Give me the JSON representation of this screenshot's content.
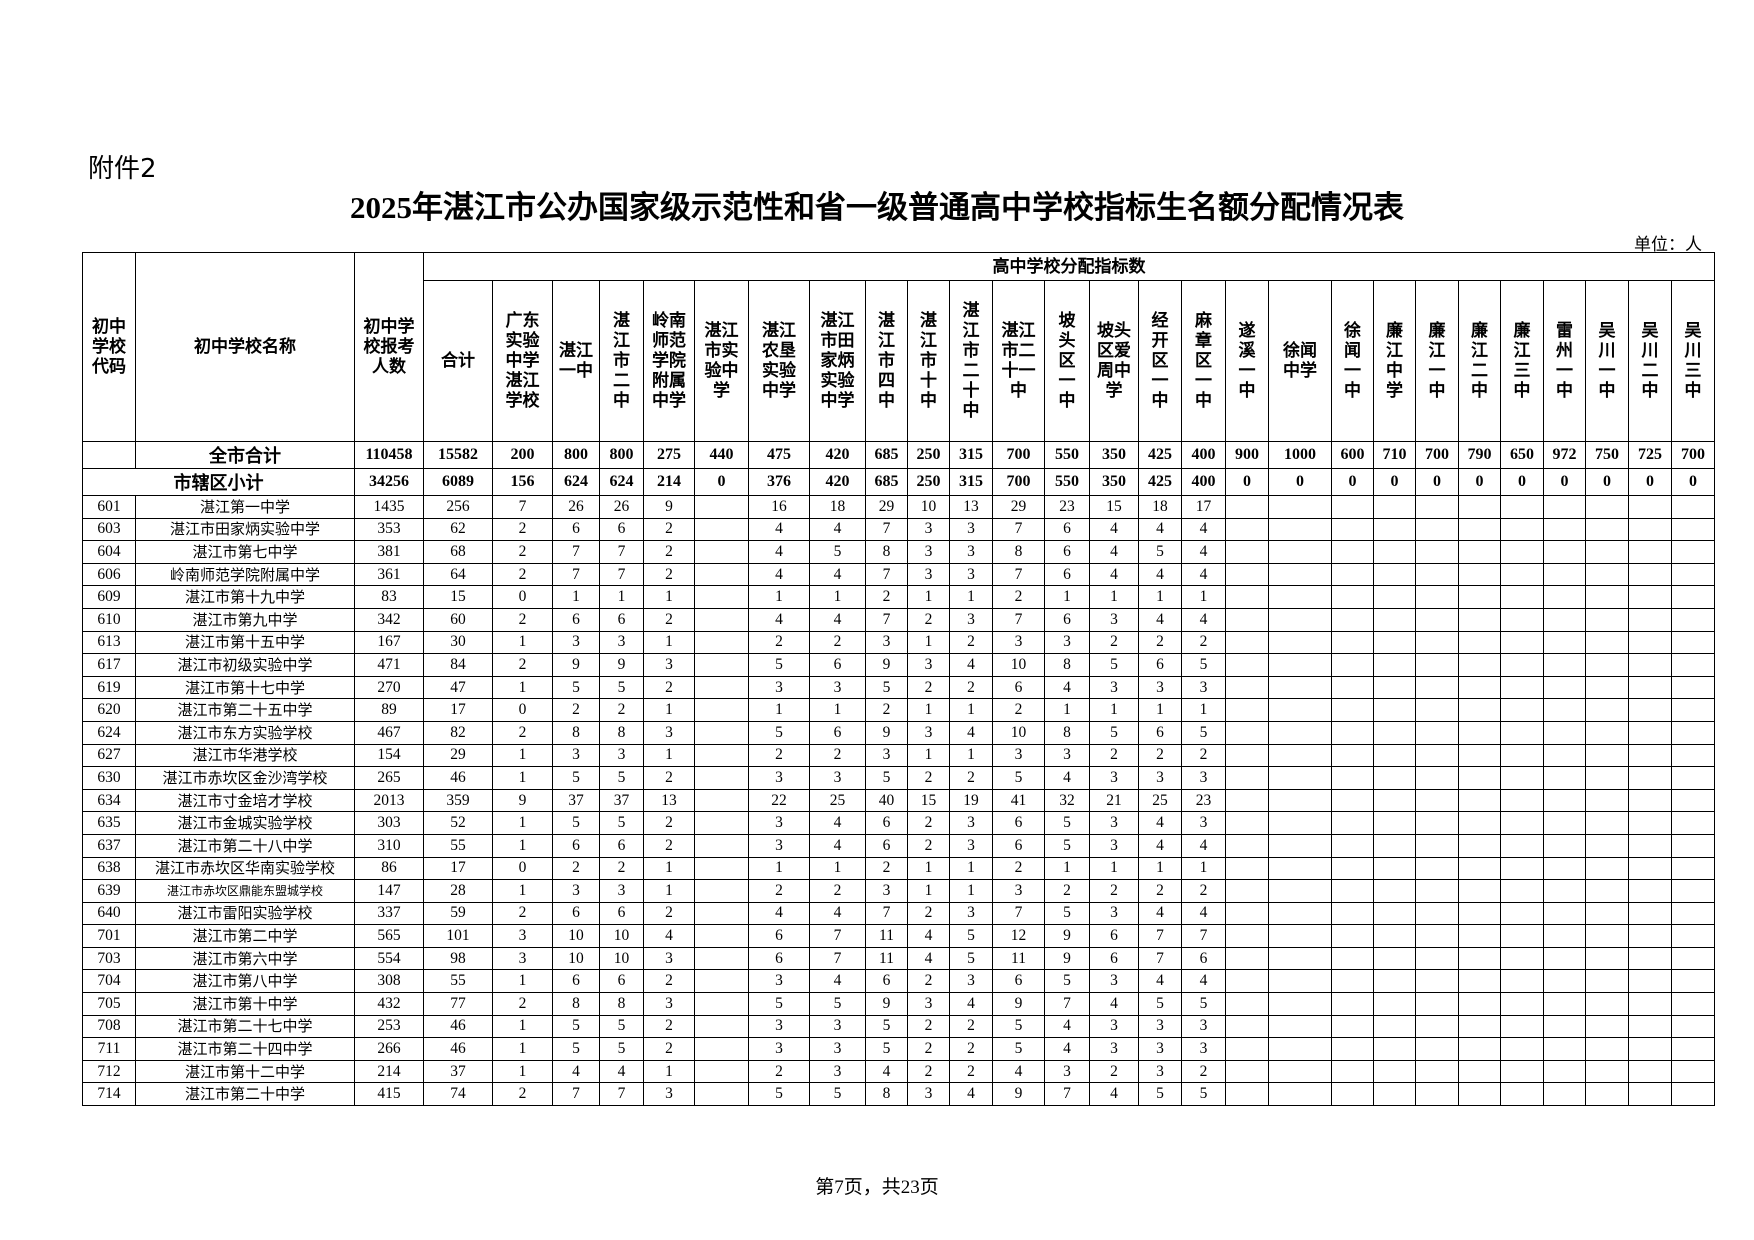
{
  "document": {
    "attachment": "附件2",
    "title": "2025年湛江市公办国家级示范性和省一级普通高中学校指标生名额分配情况表",
    "unit": "单位：人",
    "footer": "第7页，共23页"
  },
  "table": {
    "header": {
      "code": "初中\n学校\n代码",
      "name": "初中学校名称",
      "count": "初中学\n校报考\n人数",
      "group": "高中学校分配指标数",
      "schools": [
        "合计",
        "广东\n实验\n中学\n湛江\n学校",
        "湛江\n一中",
        "湛\n江\n市\n二\n中",
        "岭南\n师范\n学院\n附属\n中学",
        "湛江\n市实\n验中\n学",
        "湛江\n农垦\n实验\n中学",
        "湛江\n市田\n家炳\n实验\n中学",
        "湛\n江\n市\n四\n中",
        "湛\n江\n市\n十\n中",
        "湛\n江\n市\n二\n十\n中",
        "湛江\n市二\n十一\n中",
        "坡\n头\n区\n一\n中",
        "坡头\n区爱\n周中\n学",
        "经\n开\n区\n一\n中",
        "麻\n章\n区\n一\n中",
        "遂\n溪\n一\n中",
        "徐闻\n中学",
        "徐\n闻\n一\n中",
        "廉\n江\n中\n学",
        "廉\n江\n一\n中",
        "廉\n江\n二\n中",
        "廉\n江\n三\n中",
        "雷\n州\n一\n中",
        "吴\n川\n一\n中",
        "吴\n川\n二\n中",
        "吴\n川\n三\n中"
      ]
    },
    "totals": [
      {
        "label": "全市合计",
        "values": [
          "110458",
          "15582",
          "200",
          "800",
          "800",
          "275",
          "440",
          "475",
          "420",
          "685",
          "250",
          "315",
          "700",
          "550",
          "350",
          "425",
          "400",
          "900",
          "1000",
          "600",
          "710",
          "700",
          "790",
          "650",
          "972",
          "750",
          "725",
          "700"
        ]
      },
      {
        "label": "市辖区小计",
        "values": [
          "34256",
          "6089",
          "156",
          "624",
          "624",
          "214",
          "0",
          "376",
          "420",
          "685",
          "250",
          "315",
          "700",
          "550",
          "350",
          "425",
          "400",
          "0",
          "0",
          "0",
          "0",
          "0",
          "0",
          "0",
          "0",
          "0",
          "0",
          "0"
        ]
      }
    ],
    "rows": [
      [
        "601",
        "湛江第一中学",
        "1435",
        "256",
        "7",
        "26",
        "26",
        "9",
        "",
        "16",
        "18",
        "29",
        "10",
        "13",
        "29",
        "23",
        "15",
        "18",
        "17"
      ],
      [
        "603",
        "湛江市田家炳实验中学",
        "353",
        "62",
        "2",
        "6",
        "6",
        "2",
        "",
        "4",
        "4",
        "7",
        "3",
        "3",
        "7",
        "6",
        "4",
        "4",
        "4"
      ],
      [
        "604",
        "湛江市第七中学",
        "381",
        "68",
        "2",
        "7",
        "7",
        "2",
        "",
        "4",
        "5",
        "8",
        "3",
        "3",
        "8",
        "6",
        "4",
        "5",
        "4"
      ],
      [
        "606",
        "岭南师范学院附属中学",
        "361",
        "64",
        "2",
        "7",
        "7",
        "2",
        "",
        "4",
        "4",
        "7",
        "3",
        "3",
        "7",
        "6",
        "4",
        "4",
        "4"
      ],
      [
        "609",
        "湛江市第十九中学",
        "83",
        "15",
        "0",
        "1",
        "1",
        "1",
        "",
        "1",
        "1",
        "2",
        "1",
        "1",
        "2",
        "1",
        "1",
        "1",
        "1"
      ],
      [
        "610",
        "湛江市第九中学",
        "342",
        "60",
        "2",
        "6",
        "6",
        "2",
        "",
        "4",
        "4",
        "7",
        "2",
        "3",
        "7",
        "6",
        "3",
        "4",
        "4"
      ],
      [
        "613",
        "湛江市第十五中学",
        "167",
        "30",
        "1",
        "3",
        "3",
        "1",
        "",
        "2",
        "2",
        "3",
        "1",
        "2",
        "3",
        "3",
        "2",
        "2",
        "2"
      ],
      [
        "617",
        "湛江市初级实验中学",
        "471",
        "84",
        "2",
        "9",
        "9",
        "3",
        "",
        "5",
        "6",
        "9",
        "3",
        "4",
        "10",
        "8",
        "5",
        "6",
        "5"
      ],
      [
        "619",
        "湛江市第十七中学",
        "270",
        "47",
        "1",
        "5",
        "5",
        "2",
        "",
        "3",
        "3",
        "5",
        "2",
        "2",
        "6",
        "4",
        "3",
        "3",
        "3"
      ],
      [
        "620",
        "湛江市第二十五中学",
        "89",
        "17",
        "0",
        "2",
        "2",
        "1",
        "",
        "1",
        "1",
        "2",
        "1",
        "1",
        "2",
        "1",
        "1",
        "1",
        "1"
      ],
      [
        "624",
        "湛江市东方实验学校",
        "467",
        "82",
        "2",
        "8",
        "8",
        "3",
        "",
        "5",
        "6",
        "9",
        "3",
        "4",
        "10",
        "8",
        "5",
        "6",
        "5"
      ],
      [
        "627",
        "湛江市华港学校",
        "154",
        "29",
        "1",
        "3",
        "3",
        "1",
        "",
        "2",
        "2",
        "3",
        "1",
        "1",
        "3",
        "3",
        "2",
        "2",
        "2"
      ],
      [
        "630",
        "湛江市赤坎区金沙湾学校",
        "265",
        "46",
        "1",
        "5",
        "5",
        "2",
        "",
        "3",
        "3",
        "5",
        "2",
        "2",
        "5",
        "4",
        "3",
        "3",
        "3"
      ],
      [
        "634",
        "湛江市寸金培才学校",
        "2013",
        "359",
        "9",
        "37",
        "37",
        "13",
        "",
        "22",
        "25",
        "40",
        "15",
        "19",
        "41",
        "32",
        "21",
        "25",
        "23"
      ],
      [
        "635",
        "湛江市金城实验学校",
        "303",
        "52",
        "1",
        "5",
        "5",
        "2",
        "",
        "3",
        "4",
        "6",
        "2",
        "3",
        "6",
        "5",
        "3",
        "4",
        "3"
      ],
      [
        "637",
        "湛江市第二十八中学",
        "310",
        "55",
        "1",
        "6",
        "6",
        "2",
        "",
        "3",
        "4",
        "6",
        "2",
        "3",
        "6",
        "5",
        "3",
        "4",
        "4"
      ],
      [
        "638",
        "湛江市赤坎区华南实验学校",
        "86",
        "17",
        "0",
        "2",
        "2",
        "1",
        "",
        "1",
        "1",
        "2",
        "1",
        "1",
        "2",
        "1",
        "1",
        "1",
        "1"
      ],
      [
        "639",
        "湛江市赤坎区鼎能东盟城学校",
        "147",
        "28",
        "1",
        "3",
        "3",
        "1",
        "",
        "2",
        "2",
        "3",
        "1",
        "1",
        "3",
        "2",
        "2",
        "2",
        "2"
      ],
      [
        "640",
        "湛江市雷阳实验学校",
        "337",
        "59",
        "2",
        "6",
        "6",
        "2",
        "",
        "4",
        "4",
        "7",
        "2",
        "3",
        "7",
        "5",
        "3",
        "4",
        "4"
      ],
      [
        "701",
        "湛江市第二中学",
        "565",
        "101",
        "3",
        "10",
        "10",
        "4",
        "",
        "6",
        "7",
        "11",
        "4",
        "5",
        "12",
        "9",
        "6",
        "7",
        "7"
      ],
      [
        "703",
        "湛江市第六中学",
        "554",
        "98",
        "3",
        "10",
        "10",
        "3",
        "",
        "6",
        "7",
        "11",
        "4",
        "5",
        "11",
        "9",
        "6",
        "7",
        "6"
      ],
      [
        "704",
        "湛江市第八中学",
        "308",
        "55",
        "1",
        "6",
        "6",
        "2",
        "",
        "3",
        "4",
        "6",
        "2",
        "3",
        "6",
        "5",
        "3",
        "4",
        "4"
      ],
      [
        "705",
        "湛江市第十中学",
        "432",
        "77",
        "2",
        "8",
        "8",
        "3",
        "",
        "5",
        "5",
        "9",
        "3",
        "4",
        "9",
        "7",
        "4",
        "5",
        "5"
      ],
      [
        "708",
        "湛江市第二十七中学",
        "253",
        "46",
        "1",
        "5",
        "5",
        "2",
        "",
        "3",
        "3",
        "5",
        "2",
        "2",
        "5",
        "4",
        "3",
        "3",
        "3"
      ],
      [
        "711",
        "湛江市第二十四中学",
        "266",
        "46",
        "1",
        "5",
        "5",
        "2",
        "",
        "3",
        "3",
        "5",
        "2",
        "2",
        "5",
        "4",
        "3",
        "3",
        "3"
      ],
      [
        "712",
        "湛江市第十二中学",
        "214",
        "37",
        "1",
        "4",
        "4",
        "1",
        "",
        "2",
        "3",
        "4",
        "2",
        "2",
        "4",
        "3",
        "2",
        "3",
        "2"
      ],
      [
        "714",
        "湛江市第二十中学",
        "415",
        "74",
        "2",
        "7",
        "7",
        "3",
        "",
        "5",
        "5",
        "8",
        "3",
        "4",
        "9",
        "7",
        "4",
        "5",
        "5"
      ]
    ]
  }
}
